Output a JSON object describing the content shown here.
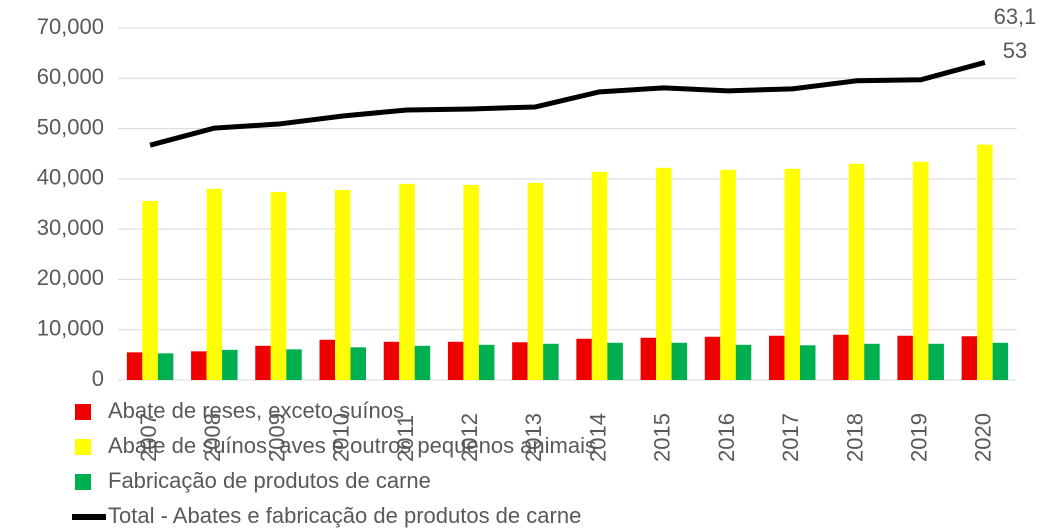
{
  "chart_data": {
    "type": "bar_line",
    "categories": [
      "2007",
      "2008",
      "2009",
      "2010",
      "2011",
      "2012",
      "2013",
      "2014",
      "2015",
      "2016",
      "2017",
      "2018",
      "2019",
      "2020"
    ],
    "series": [
      {
        "name": "Abate de reses, exceto suínos",
        "color": "#ee0000",
        "values": [
          5500,
          5700,
          6800,
          8000,
          7600,
          7600,
          7500,
          8200,
          8400,
          8600,
          8800,
          9000,
          8800,
          8700
        ]
      },
      {
        "name": "Abate de suínos, aves e outros pequenos animais",
        "color": "#ffff00",
        "values": [
          35600,
          38000,
          37400,
          37800,
          39000,
          38800,
          39200,
          41400,
          42200,
          41800,
          42000,
          43000,
          43400,
          46800
        ]
      },
      {
        "name": "Fabricação de produtos de carne",
        "color": "#00b050",
        "values": [
          5300,
          6000,
          6100,
          6500,
          6800,
          7000,
          7200,
          7400,
          7400,
          7000,
          6900,
          7200,
          7200,
          7400
        ]
      },
      {
        "name": "Total - Abates e fabricação de produtos de carne",
        "color": "#000000",
        "type": "line",
        "values": [
          46700,
          50100,
          50900,
          52500,
          53700,
          53900,
          54300,
          57300,
          58100,
          57500,
          57900,
          59500,
          59700,
          63153
        ],
        "value_labels": [
          null,
          null,
          null,
          null,
          null,
          null,
          null,
          null,
          null,
          null,
          null,
          null,
          null,
          "63,153"
        ]
      }
    ],
    "ylim": [
      0,
      70000
    ],
    "yticks": [
      0,
      {
        "value": 10000,
        "label": "10,000"
      },
      {
        "value": 20000,
        "label": "20,000"
      },
      {
        "value": 30000,
        "label": "30,000"
      },
      {
        "value": 40000,
        "label": "40,000"
      },
      {
        "value": 50000,
        "label": "50,000"
      },
      {
        "value": 60000,
        "label": "60,000"
      },
      {
        "value": 70000,
        "label": "70,000"
      }
    ],
    "grid": true
  }
}
